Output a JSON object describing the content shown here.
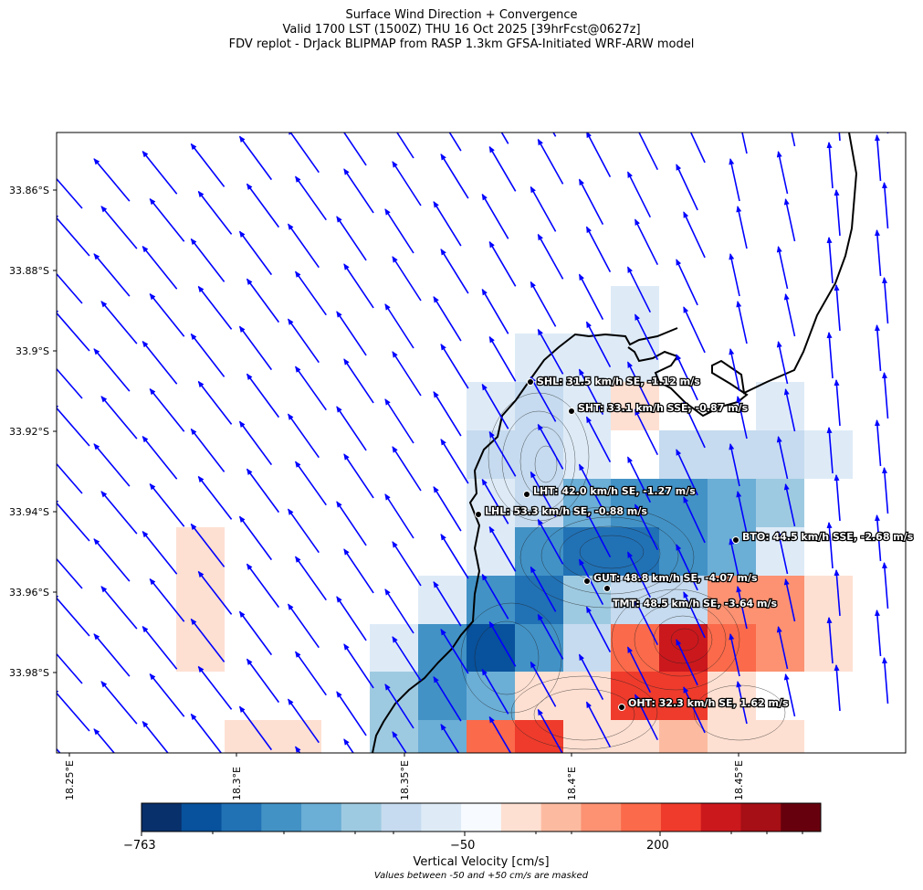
{
  "header": {
    "title": "Surface Wind Direction + Convergence",
    "valid": "Valid 1700 LST (1500Z) THU 16 Oct 2025 [39hrFcst@0627z]",
    "source": "FDV replot - DrJack BLIPMAP from RASP 1.3km GFSA-Initiated WRF-ARW model"
  },
  "map": {
    "lat_ticks": [
      "33.86°S",
      "33.88°S",
      "33.9°S",
      "33.92°S",
      "33.94°S",
      "33.96°S",
      "33.98°S"
    ],
    "lon_ticks": [
      "18.25°E",
      "18.3°E",
      "18.35°E",
      "18.4°E",
      "18.45°E"
    ],
    "arrow_color": "#0000ff",
    "coast_color": "#000000"
  },
  "stations": [
    {
      "id": "SHL",
      "label": "SHL: 31.5 km/h SE, -1.12 m/s"
    },
    {
      "id": "SHT",
      "label": "SHT: 33.1 km/h SSE, -0.87 m/s"
    },
    {
      "id": "LHT",
      "label": "LHT: 42.0 km/h SE, -1.27 m/s"
    },
    {
      "id": "LHL",
      "label": "LHL: 53.3 km/h SE, -0.88 m/s"
    },
    {
      "id": "BTO",
      "label": "BTO: 44.5 km/h SSE, -2.68 m/s"
    },
    {
      "id": "GUT",
      "label": "GUT: 48.8 km/h SE, -4.07 m/s"
    },
    {
      "id": "TMT",
      "label": "TMT: 48.5 km/h SE, -3.64 m/s"
    },
    {
      "id": "OHT",
      "label": "OHT: 32.3 km/h SE, 1.62 m/s"
    }
  ],
  "colorbar": {
    "title": "Vertical Velocity [cm/s]",
    "note": "Values between -50 and +50 cm/s are masked",
    "tick_labels": [
      "−763",
      "−50",
      "200"
    ],
    "colors": [
      "#08306b",
      "#08519c",
      "#2171b5",
      "#4292c6",
      "#6baed6",
      "#9ecae1",
      "#c6dbef",
      "#deebf7",
      "#f7fbff",
      "#fee0d2",
      "#fcbba1",
      "#fc9272",
      "#fb6a4a",
      "#ef3b2c",
      "#cb181d",
      "#a50f15",
      "#67000d"
    ]
  }
}
